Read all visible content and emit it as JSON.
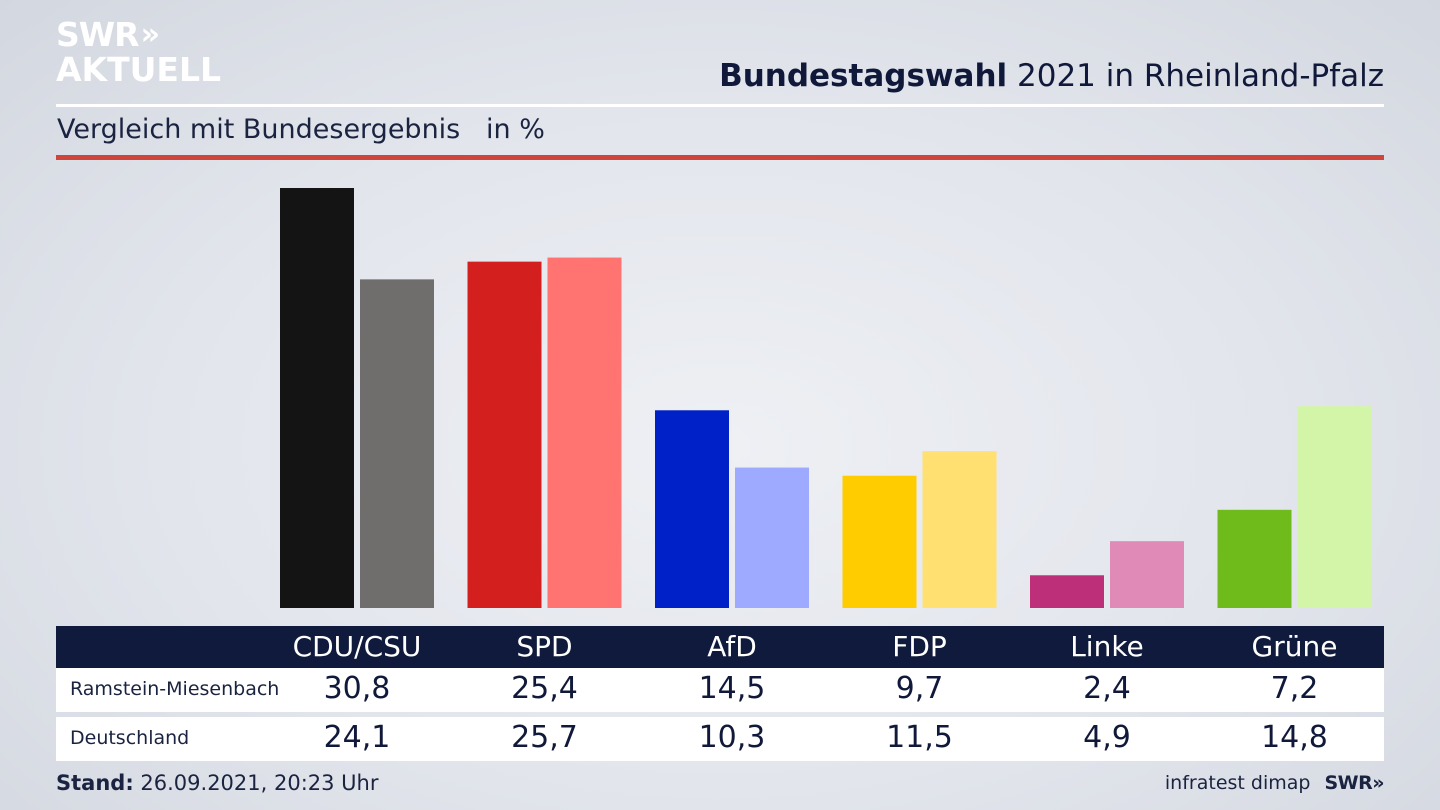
{
  "logo": {
    "line1": "SWR",
    "chevrons": "»",
    "line2": "AKTUELL"
  },
  "header": {
    "title_bold": "Bundestagswahl",
    "title_rest": " 2021 in Rheinland-Pfalz"
  },
  "subtitle": "Vergleich mit Bundesergebnis   in %",
  "colors": {
    "local": [
      "#141414",
      "#d41f1f",
      "#0020c8",
      "#ffcc00",
      "#be2f7a",
      "#6fbb1c"
    ],
    "national": [
      "#706e6c",
      "#ff7470",
      "#9eaaff",
      "#ffe070",
      "#e08ab8",
      "#d3f5a8"
    ],
    "header_bar": "#0f1a3c",
    "accent_rule": "#d0453b"
  },
  "chart_data": {
    "type": "bar",
    "categories": [
      "CDU/CSU",
      "SPD",
      "AfD",
      "FDP",
      "Linke",
      "Grüne"
    ],
    "series": [
      {
        "name": "Ramstein-Miesenbach",
        "values": [
          30.8,
          25.4,
          14.5,
          9.7,
          2.4,
          7.2
        ]
      },
      {
        "name": "Deutschland",
        "values": [
          24.1,
          25.7,
          10.3,
          11.5,
          4.9,
          14.8
        ]
      }
    ],
    "value_labels": {
      "Ramstein-Miesenbach": [
        "30,8",
        "25,4",
        "14,5",
        "9,7",
        "2,4",
        "7,2"
      ],
      "Deutschland": [
        "24,1",
        "25,7",
        "10,3",
        "11,5",
        "4,9",
        "14,8"
      ]
    },
    "ylim": [
      0,
      30.8
    ],
    "grid": false
  },
  "footer": {
    "stand_label": "Stand:",
    "stand_value": " 26.09.2021, 20:23 Uhr",
    "source": "infratest dimap",
    "brand": "SWR»"
  }
}
